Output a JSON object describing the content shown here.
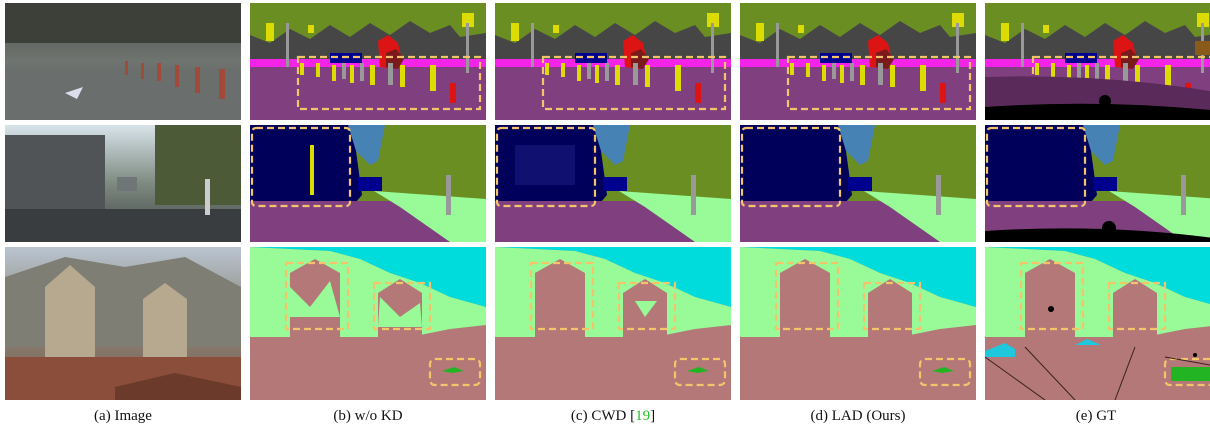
{
  "figure": {
    "captions": [
      {
        "text": "(a) Image"
      },
      {
        "text": "(b) w/o KD"
      },
      {
        "text": "(c) CWD [",
        "cite": "19",
        "close": "]"
      },
      {
        "text": "(d) LAD (Ours)"
      },
      {
        "text": "(e) GT"
      }
    ]
  }
}
